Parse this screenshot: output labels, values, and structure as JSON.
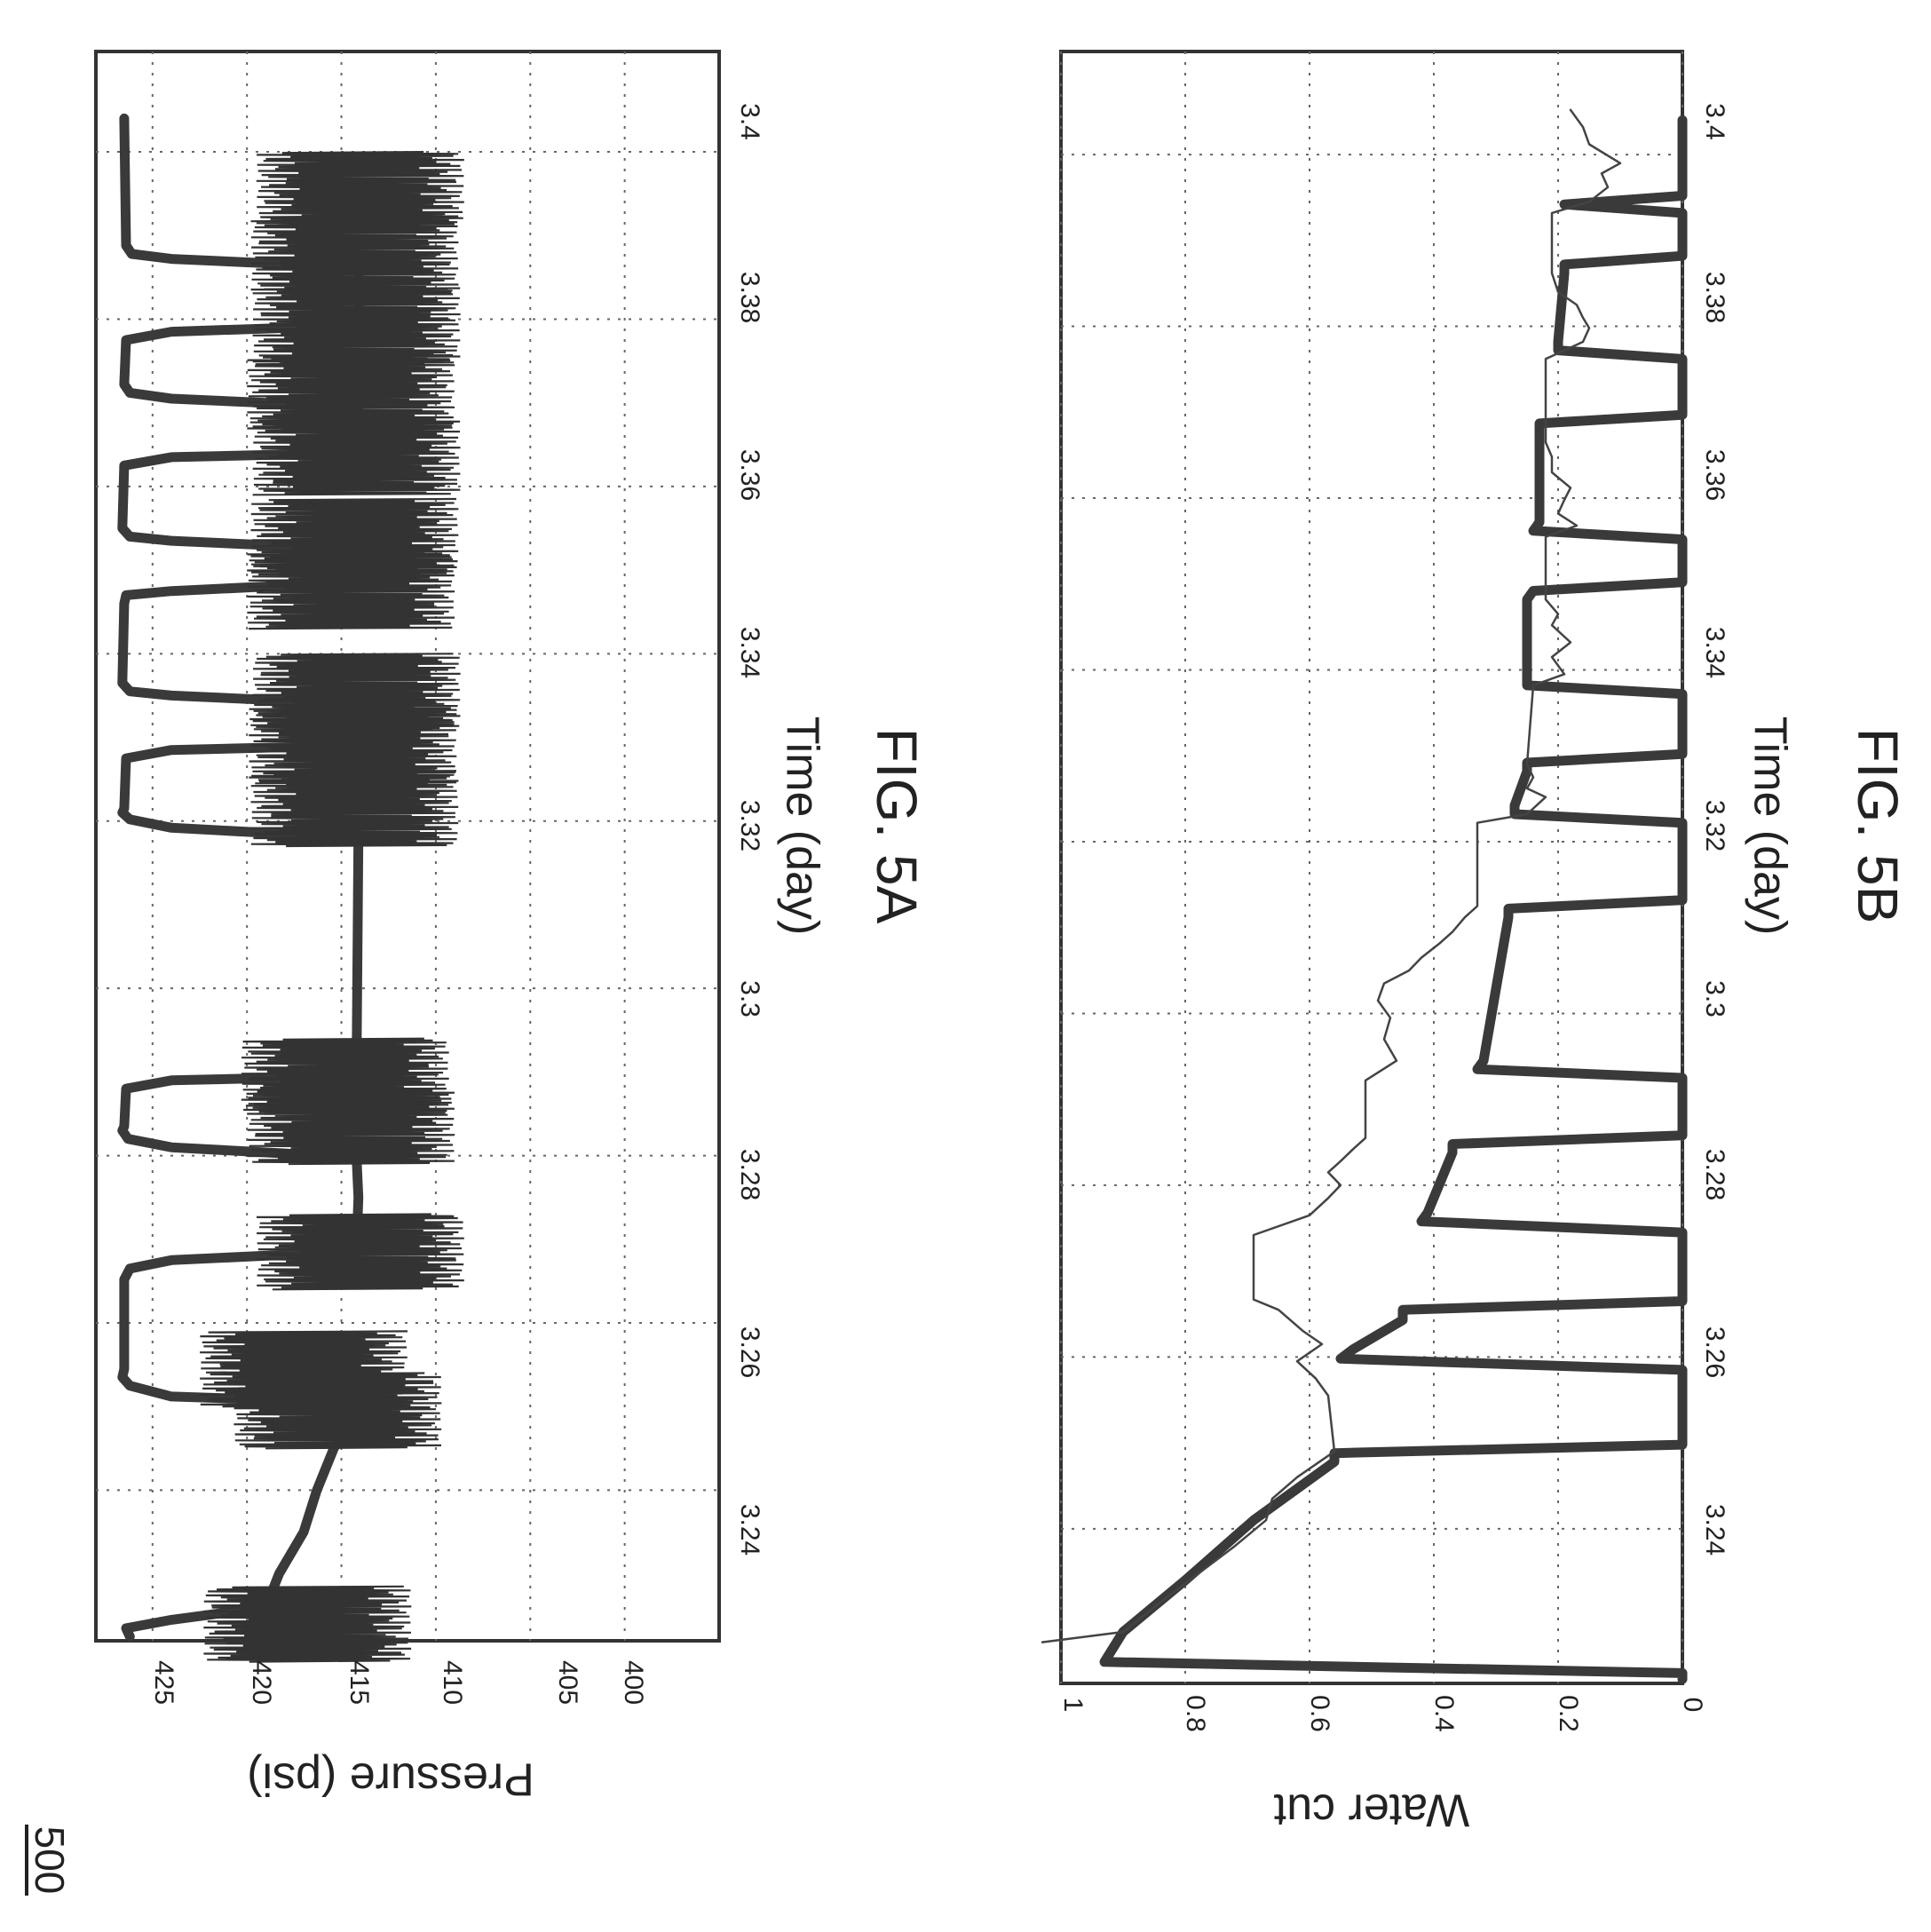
{
  "figure_number": "500",
  "chart_data": [
    {
      "type": "line",
      "caption": "FIG. 5A",
      "xlabel": "Time (day)",
      "ylabel": "Pressure (psi)",
      "xlim": [
        3.222,
        3.412
      ],
      "ylim": [
        395,
        428
      ],
      "xticks": [
        "3.24",
        "3.26",
        "3.28",
        "3.3",
        "3.32",
        "3.34",
        "3.36",
        "3.38",
        "3.4"
      ],
      "yticks": [
        "400",
        "405",
        "410",
        "415",
        "420",
        "425"
      ],
      "grid": true,
      "legend": "none",
      "series": [
        {
          "style": "thick-trace",
          "x": [
            3.2225,
            3.2235,
            3.2245,
            3.226,
            3.23,
            3.235,
            3.24,
            3.245,
            3.2495,
            3.2505,
            3.2512,
            3.2525,
            3.2535,
            3.2545,
            3.2652,
            3.2665,
            3.2675,
            3.2685,
            3.269,
            3.275,
            3.2798,
            3.281,
            3.282,
            3.283,
            3.2835,
            3.288,
            3.289,
            3.2895,
            3.2905,
            3.318,
            3.3192,
            3.3202,
            3.321,
            3.3215,
            3.3275,
            3.3285,
            3.329,
            3.33,
            3.334,
            3.335,
            3.3355,
            3.3365,
            3.346,
            3.347,
            3.3475,
            3.3485,
            3.3525,
            3.3535,
            3.354,
            3.355,
            3.3625,
            3.3635,
            3.364,
            3.365,
            3.3695,
            3.3705,
            3.3712,
            3.3722,
            3.3775,
            3.3785,
            3.3792,
            3.3802,
            3.3862,
            3.3872,
            3.3878,
            3.3888,
            3.404
          ],
          "y": [
            426.2,
            426.4,
            424,
            419,
            418.3,
            417,
            416.3,
            415.4,
            414.2,
            414.5,
            424,
            426.2,
            426.6,
            426.5,
            426.5,
            426.2,
            424,
            414.6,
            414.2,
            414.1,
            414.2,
            424,
            426.3,
            426.6,
            426.5,
            426.4,
            424,
            414.6,
            414.2,
            414.1,
            424,
            426.2,
            426.6,
            426.5,
            426.4,
            424,
            414.6,
            414.2,
            414.1,
            424,
            426.2,
            426.6,
            426.5,
            426.4,
            424,
            414.6,
            414.1,
            424,
            426.2,
            426.6,
            426.5,
            424,
            414.6,
            414.2,
            414.1,
            424,
            426.2,
            426.5,
            426.4,
            424,
            414.6,
            414.1,
            414.1,
            424,
            426.1,
            426.4,
            426.5
          ]
        },
        {
          "style": "noisy-burst",
          "x": [
            3.224,
            3.2495,
            3.2545,
            3.2685,
            3.2835,
            3.2895,
            3.3215,
            3.329,
            3.3355,
            3.3475,
            3.354,
            3.3635,
            3.3712,
            3.3792,
            3.3878,
            3.3955
          ],
          "y": [
            416.8,
            415.2,
            417,
            414,
            414.5,
            414.8,
            414.3,
            414.4,
            414.2,
            414.5,
            414.3,
            414.2,
            414.5,
            414.2,
            414.3,
            414
          ]
        }
      ]
    },
    {
      "type": "line",
      "caption": "FIG. 5B",
      "xlabel": "Time (day)",
      "ylabel": "Water cut",
      "xlim": [
        3.222,
        3.412
      ],
      "ylim": [
        0,
        1
      ],
      "xticks": [
        "3.24",
        "3.26",
        "3.28",
        "3.3",
        "3.32",
        "3.34",
        "3.36",
        "3.38",
        "3.4"
      ],
      "yticks": [
        "0",
        "0.2",
        "0.4",
        "0.6",
        "0.8",
        "1"
      ],
      "grid": true,
      "legend": "none",
      "series": [
        {
          "style": "thick-trace",
          "x": [
            3.2225,
            3.2232,
            3.2245,
            3.228,
            3.234,
            3.241,
            3.2478,
            3.2488,
            3.2498,
            3.2585,
            3.2598,
            3.2609,
            3.2643,
            3.2655,
            3.2665,
            3.2745,
            3.2758,
            3.2768,
            3.2838,
            3.2848,
            3.2858,
            3.2925,
            3.2935,
            3.2945,
            3.3112,
            3.3122,
            3.3132,
            3.3222,
            3.3232,
            3.3242,
            3.3282,
            3.3292,
            3.3302,
            3.3372,
            3.3382,
            3.3392,
            3.3482,
            3.3492,
            3.3502,
            3.3552,
            3.3562,
            3.3572,
            3.3677,
            3.3687,
            3.3697,
            3.3762,
            3.3772,
            3.3782,
            3.3862,
            3.3872,
            3.3882,
            3.3932,
            3.3942,
            3.3952,
            3.404
          ],
          "y": [
            0,
            0,
            0.93,
            0.9,
            0.8,
            0.69,
            0.56,
            0.56,
            0,
            0,
            0.55,
            0.53,
            0.45,
            0.45,
            0,
            0,
            0.42,
            0.41,
            0.37,
            0.37,
            0,
            0,
            0.33,
            0.32,
            0.28,
            0.28,
            0,
            0,
            0.27,
            0.27,
            0.25,
            0.25,
            0,
            0,
            0.25,
            0.25,
            0.25,
            0.24,
            0,
            0,
            0.24,
            0.23,
            0.23,
            0.23,
            0,
            0,
            0.2,
            0.2,
            0.19,
            0.19,
            0,
            0,
            0.19,
            0,
            0
          ]
        },
        {
          "style": "thin-trace",
          "x": [
            3.2268,
            3.228,
            3.232,
            3.238,
            3.241,
            3.2435,
            3.246,
            3.2475,
            3.249,
            3.2555,
            3.2575,
            3.2595,
            3.2615,
            3.263,
            3.2655,
            3.2667,
            3.2742,
            3.2765,
            3.2785,
            3.28,
            3.2815,
            3.2828,
            3.2842,
            3.2855,
            3.2922,
            3.2945,
            3.297,
            3.2995,
            3.3015,
            3.3035,
            3.305,
            3.3065,
            3.3082,
            3.3095,
            3.3112,
            3.3125,
            3.3222,
            3.3232,
            3.3252,
            3.3262,
            3.3275,
            3.329,
            3.3382,
            3.3395,
            3.3415,
            3.3432,
            3.3452,
            3.3465,
            3.3482,
            3.3555,
            3.3568,
            3.3582,
            3.3598,
            3.3612,
            3.363,
            3.3648,
            3.3665,
            3.3762,
            3.3782,
            3.3798,
            3.381,
            3.3825,
            3.384,
            3.3862,
            3.3932,
            3.3945,
            3.3962,
            3.3978,
            3.399,
            3.4012,
            3.4032,
            3.4052
          ],
          "y": [
            1.03,
            0.9,
            0.83,
            0.72,
            0.67,
            0.66,
            0.62,
            0.59,
            0.56,
            0.57,
            0.59,
            0.62,
            0.58,
            0.61,
            0.65,
            0.69,
            0.69,
            0.6,
            0.57,
            0.55,
            0.57,
            0.55,
            0.53,
            0.51,
            0.51,
            0.46,
            0.48,
            0.47,
            0.49,
            0.48,
            0.44,
            0.42,
            0.39,
            0.37,
            0.35,
            0.33,
            0.33,
            0.25,
            0.22,
            0.25,
            0.24,
            0.25,
            0.24,
            0.19,
            0.21,
            0.18,
            0.21,
            0.2,
            0.22,
            0.22,
            0.17,
            0.2,
            0.19,
            0.18,
            0.21,
            0.21,
            0.22,
            0.22,
            0.16,
            0.15,
            0.16,
            0.17,
            0.2,
            0.21,
            0.21,
            0.15,
            0.12,
            0.13,
            0.1,
            0.15,
            0.16,
            0.18
          ]
        }
      ]
    }
  ]
}
